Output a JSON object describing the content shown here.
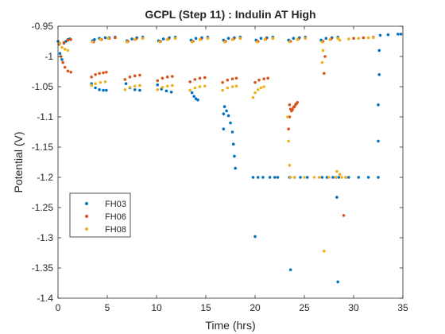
{
  "chart_data": {
    "type": "scatter",
    "title": "GCPL (Step 11) : Indulin AT High",
    "xlabel": "Time (hrs)",
    "ylabel": "Potential (V)",
    "xlim": [
      0,
      35
    ],
    "ylim": [
      -1.4,
      -0.95
    ],
    "xticks": [
      0,
      5,
      10,
      15,
      20,
      25,
      30,
      35
    ],
    "xtick_labels": [
      "0",
      "5",
      "10",
      "15",
      "20",
      "25",
      "30",
      "35"
    ],
    "yticks": [
      -0.95,
      -1.0,
      -1.05,
      -1.1,
      -1.15,
      -1.2,
      -1.25,
      -1.3,
      -1.35,
      -1.4
    ],
    "ytick_labels": [
      "-0.95",
      "-1",
      "-1.05",
      "-1.1",
      "-1.15",
      "-1.2",
      "-1.25",
      "-1.3",
      "-1.35",
      "-1.4"
    ],
    "grid": false,
    "legend_position": "lower-left",
    "series": [
      {
        "name": "FH03",
        "color": "#0072BD",
        "points": [
          [
            0.0,
            -0.975
          ],
          [
            0.2,
            -0.995
          ],
          [
            0.4,
            -1.005
          ],
          [
            0.6,
            -0.978
          ],
          [
            0.8,
            -0.975
          ],
          [
            1.0,
            -0.972
          ],
          [
            1.2,
            -0.971
          ],
          [
            3.5,
            -0.974
          ],
          [
            3.7,
            -0.972
          ],
          [
            4.2,
            -0.97
          ],
          [
            4.8,
            -0.969
          ],
          [
            5.2,
            -0.969
          ],
          [
            5.8,
            -0.968
          ],
          [
            3.4,
            -1.045
          ],
          [
            3.8,
            -1.052
          ],
          [
            4.2,
            -1.055
          ],
          [
            4.6,
            -1.056
          ],
          [
            4.9,
            -1.056
          ],
          [
            7.0,
            -0.974
          ],
          [
            7.5,
            -0.971
          ],
          [
            8.0,
            -0.969
          ],
          [
            8.6,
            -0.968
          ],
          [
            6.9,
            -1.045
          ],
          [
            7.3,
            -1.052
          ],
          [
            7.8,
            -1.055
          ],
          [
            8.3,
            -1.056
          ],
          [
            10.2,
            -0.974
          ],
          [
            10.7,
            -0.971
          ],
          [
            11.3,
            -0.969
          ],
          [
            11.9,
            -0.968
          ],
          [
            10.1,
            -1.047
          ],
          [
            10.5,
            -1.054
          ],
          [
            11.0,
            -1.057
          ],
          [
            11.5,
            -1.059
          ],
          [
            13.5,
            -0.973
          ],
          [
            14.0,
            -0.97
          ],
          [
            14.6,
            -0.969
          ],
          [
            15.2,
            -0.968
          ],
          [
            13.6,
            -1.06
          ],
          [
            13.8,
            -1.066
          ],
          [
            14.0,
            -1.07
          ],
          [
            14.2,
            -1.072
          ],
          [
            16.8,
            -0.973
          ],
          [
            17.3,
            -0.97
          ],
          [
            17.9,
            -0.969
          ],
          [
            18.5,
            -0.968
          ],
          [
            16.9,
            -1.083
          ],
          [
            17.1,
            -1.09
          ],
          [
            17.3,
            -1.098
          ],
          [
            17.5,
            -1.11
          ],
          [
            17.7,
            -1.125
          ],
          [
            17.8,
            -1.145
          ],
          [
            17.9,
            -1.165
          ],
          [
            18.0,
            -1.185
          ],
          [
            16.8,
            -1.095
          ],
          [
            16.8,
            -1.12
          ],
          [
            20.1,
            -0.973
          ],
          [
            20.6,
            -0.97
          ],
          [
            21.2,
            -0.969
          ],
          [
            21.8,
            -0.968
          ],
          [
            19.8,
            -1.2
          ],
          [
            20.3,
            -1.2
          ],
          [
            20.8,
            -1.2
          ],
          [
            21.5,
            -1.2
          ],
          [
            22.0,
            -1.2
          ],
          [
            22.3,
            -1.2
          ],
          [
            20.0,
            -1.298
          ],
          [
            23.4,
            -0.973
          ],
          [
            23.9,
            -0.97
          ],
          [
            24.5,
            -0.969
          ],
          [
            25.1,
            -0.968
          ],
          [
            23.5,
            -1.2
          ],
          [
            24.0,
            -1.2
          ],
          [
            24.6,
            -1.2
          ],
          [
            25.3,
            -1.2
          ],
          [
            23.6,
            -1.353
          ],
          [
            26.7,
            -0.973
          ],
          [
            27.2,
            -0.97
          ],
          [
            27.8,
            -0.969
          ],
          [
            28.4,
            -0.968
          ],
          [
            26.8,
            -1.2
          ],
          [
            27.3,
            -1.2
          ],
          [
            27.9,
            -1.2
          ],
          [
            28.2,
            -1.2
          ],
          [
            28.3,
            -1.233
          ],
          [
            28.4,
            -1.373
          ],
          [
            28.5,
            -1.2
          ],
          [
            29.5,
            -1.2
          ],
          [
            30.5,
            -1.2
          ],
          [
            31.5,
            -1.2
          ],
          [
            32.5,
            -1.2
          ],
          [
            32.5,
            -1.14
          ],
          [
            32.5,
            -1.08
          ],
          [
            32.6,
            -1.03
          ],
          [
            32.6,
            -0.99
          ],
          [
            32.7,
            -0.965
          ],
          [
            33.5,
            -0.964
          ],
          [
            34.5,
            -0.963
          ],
          [
            34.8,
            -0.963
          ]
        ]
      },
      {
        "name": "FH06",
        "color": "#D95319",
        "points": [
          [
            0.1,
            -0.98
          ],
          [
            0.3,
            -1.0
          ],
          [
            0.5,
            -1.01
          ],
          [
            0.7,
            -1.018
          ],
          [
            1.0,
            -1.024
          ],
          [
            1.3,
            -1.026
          ],
          [
            0.6,
            -0.977
          ],
          [
            1.0,
            -0.973
          ],
          [
            1.3,
            -0.972
          ],
          [
            3.4,
            -1.034
          ],
          [
            3.8,
            -1.03
          ],
          [
            4.2,
            -1.028
          ],
          [
            4.6,
            -1.027
          ],
          [
            4.9,
            -1.026
          ],
          [
            3.6,
            -0.976
          ],
          [
            4.4,
            -0.972
          ],
          [
            5.2,
            -0.97
          ],
          [
            5.8,
            -0.969
          ],
          [
            6.8,
            -1.038
          ],
          [
            7.3,
            -1.034
          ],
          [
            7.8,
            -1.032
          ],
          [
            8.3,
            -1.031
          ],
          [
            7.1,
            -0.975
          ],
          [
            7.9,
            -0.971
          ],
          [
            8.6,
            -0.97
          ],
          [
            10.1,
            -1.04
          ],
          [
            10.6,
            -1.036
          ],
          [
            11.1,
            -1.034
          ],
          [
            11.6,
            -1.033
          ],
          [
            10.4,
            -0.975
          ],
          [
            11.2,
            -0.971
          ],
          [
            11.9,
            -0.97
          ],
          [
            13.4,
            -1.042
          ],
          [
            13.9,
            -1.038
          ],
          [
            14.4,
            -1.036
          ],
          [
            14.9,
            -1.035
          ],
          [
            13.7,
            -0.975
          ],
          [
            14.5,
            -0.971
          ],
          [
            15.2,
            -0.97
          ],
          [
            16.7,
            -1.043
          ],
          [
            17.2,
            -1.039
          ],
          [
            17.7,
            -1.037
          ],
          [
            18.1,
            -1.036
          ],
          [
            17.0,
            -0.975
          ],
          [
            17.8,
            -0.971
          ],
          [
            18.5,
            -0.97
          ],
          [
            20.0,
            -1.043
          ],
          [
            20.4,
            -1.039
          ],
          [
            20.9,
            -1.037
          ],
          [
            21.3,
            -1.036
          ],
          [
            20.3,
            -0.975
          ],
          [
            21.1,
            -0.971
          ],
          [
            21.8,
            -0.97
          ],
          [
            23.5,
            -1.08
          ],
          [
            23.6,
            -1.087
          ],
          [
            23.7,
            -1.09
          ],
          [
            23.8,
            -1.088
          ],
          [
            23.9,
            -1.084
          ],
          [
            24.0,
            -1.083
          ],
          [
            24.1,
            -1.08
          ],
          [
            24.2,
            -1.078
          ],
          [
            24.3,
            -1.076
          ],
          [
            23.4,
            -1.12
          ],
          [
            23.5,
            -1.1
          ],
          [
            23.6,
            -0.975
          ],
          [
            24.4,
            -0.971
          ],
          [
            25.1,
            -0.97
          ],
          [
            26.9,
            -0.975
          ],
          [
            27.7,
            -0.971
          ],
          [
            28.4,
            -0.97
          ],
          [
            27.1,
            -1.0
          ],
          [
            27.0,
            -1.028
          ],
          [
            29.2,
            -1.2
          ],
          [
            29.0,
            -1.263
          ],
          [
            30.0,
            -0.97
          ],
          [
            31.0,
            -0.969
          ],
          [
            32.0,
            -0.968
          ]
        ]
      },
      {
        "name": "FH08",
        "color": "#EDB120",
        "points": [
          [
            0.2,
            -0.978
          ],
          [
            0.4,
            -0.985
          ],
          [
            0.7,
            -0.988
          ],
          [
            1.0,
            -0.99
          ],
          [
            3.4,
            -1.048
          ],
          [
            3.8,
            -1.045
          ],
          [
            4.3,
            -1.043
          ],
          [
            4.8,
            -1.042
          ],
          [
            3.5,
            -0.976
          ],
          [
            4.3,
            -0.972
          ],
          [
            5.1,
            -0.97
          ],
          [
            6.8,
            -1.055
          ],
          [
            7.3,
            -1.051
          ],
          [
            7.8,
            -1.049
          ],
          [
            8.3,
            -1.048
          ],
          [
            7.0,
            -0.976
          ],
          [
            7.8,
            -0.972
          ],
          [
            8.6,
            -0.97
          ],
          [
            10.1,
            -1.055
          ],
          [
            10.6,
            -1.051
          ],
          [
            11.1,
            -1.049
          ],
          [
            11.6,
            -1.048
          ],
          [
            10.3,
            -0.976
          ],
          [
            11.1,
            -0.972
          ],
          [
            11.9,
            -0.97
          ],
          [
            13.4,
            -1.056
          ],
          [
            13.9,
            -1.052
          ],
          [
            14.4,
            -1.05
          ],
          [
            14.9,
            -1.049
          ],
          [
            13.6,
            -0.976
          ],
          [
            14.4,
            -0.972
          ],
          [
            15.2,
            -0.97
          ],
          [
            16.7,
            -1.056
          ],
          [
            17.2,
            -1.052
          ],
          [
            17.7,
            -1.05
          ],
          [
            18.1,
            -1.049
          ],
          [
            16.9,
            -0.976
          ],
          [
            17.7,
            -0.972
          ],
          [
            18.5,
            -0.97
          ],
          [
            19.8,
            -1.068
          ],
          [
            20.0,
            -1.06
          ],
          [
            20.3,
            -1.055
          ],
          [
            20.6,
            -1.052
          ],
          [
            20.9,
            -1.05
          ],
          [
            20.2,
            -0.976
          ],
          [
            21.0,
            -0.972
          ],
          [
            21.8,
            -0.97
          ],
          [
            23.3,
            -1.1
          ],
          [
            23.4,
            -1.14
          ],
          [
            23.5,
            -1.18
          ],
          [
            23.6,
            -1.2
          ],
          [
            24.0,
            -1.2
          ],
          [
            25.0,
            -1.2
          ],
          [
            26.0,
            -1.2
          ],
          [
            26.5,
            -1.2
          ],
          [
            23.5,
            -0.976
          ],
          [
            24.3,
            -0.972
          ],
          [
            25.1,
            -0.97
          ],
          [
            26.8,
            -1.01
          ],
          [
            26.9,
            -0.99
          ],
          [
            26.8,
            -0.976
          ],
          [
            27.6,
            -0.972
          ],
          [
            28.4,
            -0.97
          ],
          [
            27.5,
            -1.2
          ],
          [
            28.2,
            -1.2
          ],
          [
            28.8,
            -1.2
          ],
          [
            29.2,
            -1.2
          ],
          [
            28.3,
            -1.19
          ],
          [
            28.6,
            -1.195
          ],
          [
            27.0,
            -1.322
          ],
          [
            28.6,
            -0.973
          ],
          [
            29.5,
            -0.971
          ],
          [
            30.5,
            -0.97
          ],
          [
            31.5,
            -0.969
          ],
          [
            32.0,
            -0.969
          ]
        ]
      }
    ]
  }
}
